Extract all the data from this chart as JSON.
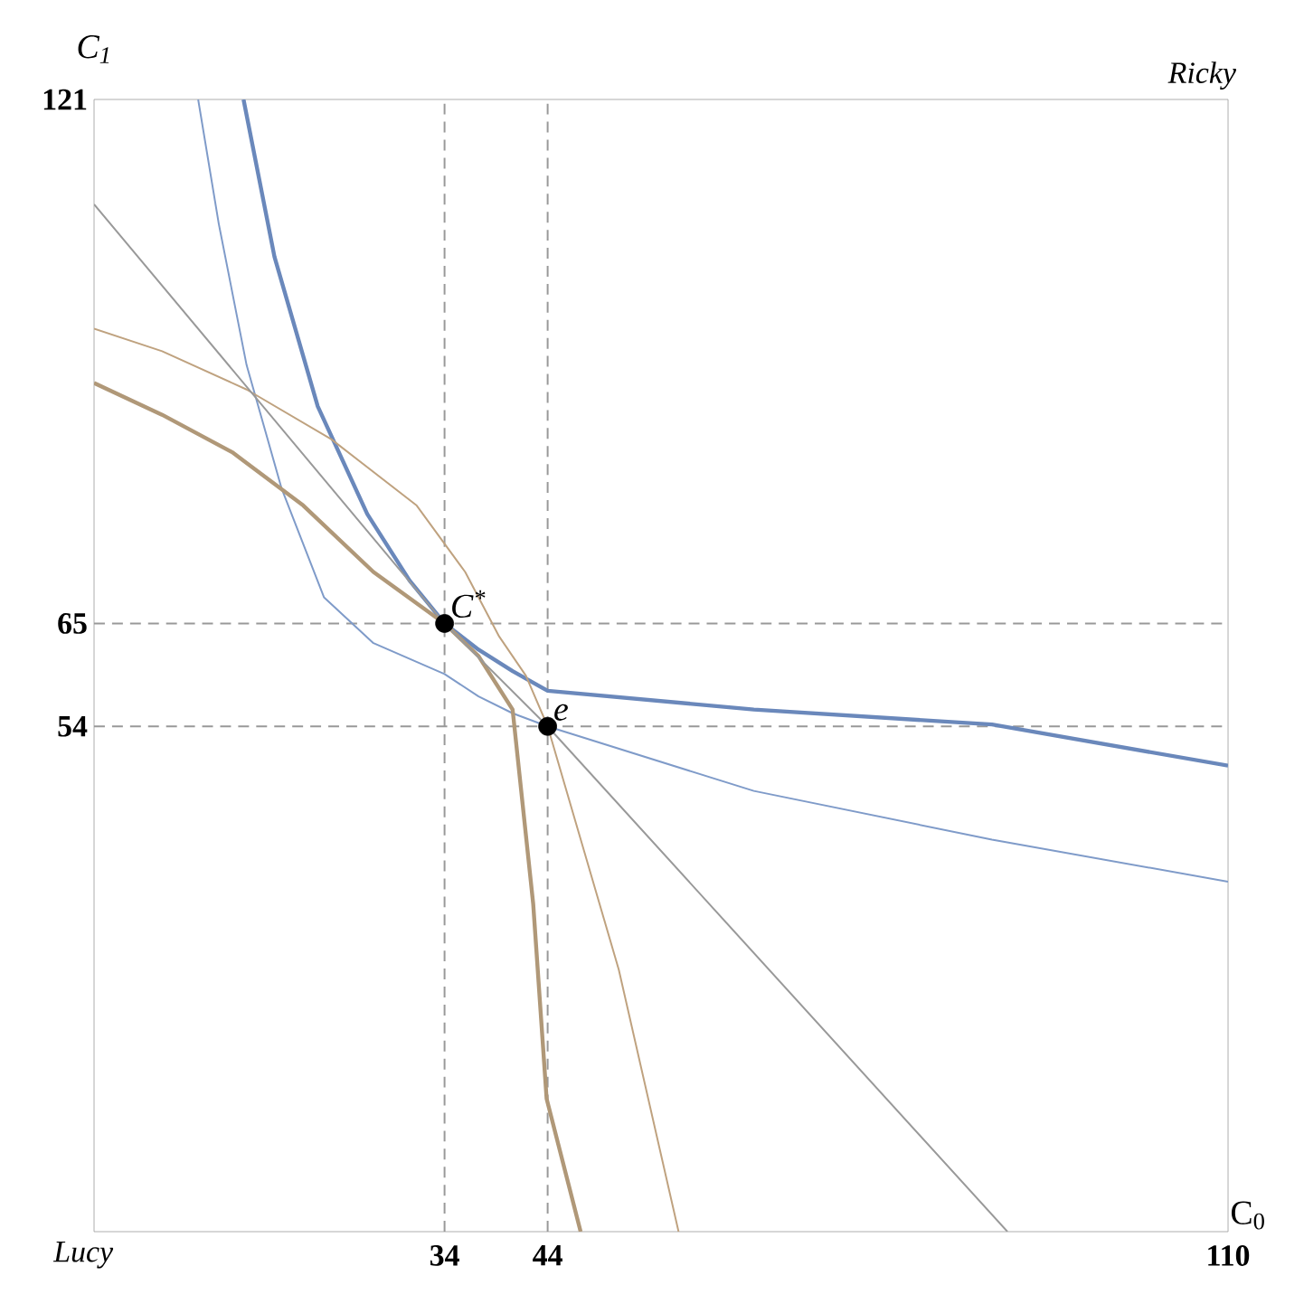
{
  "chart_data": {
    "type": "line",
    "xlabel": "C$_{0}$",
    "ylabel": "C$_{1}$",
    "xlim": [
      0,
      110
    ],
    "ylim": [
      0,
      121
    ],
    "xticks": [
      34,
      44,
      110
    ],
    "yticks": [
      54,
      65,
      121
    ],
    "grid": false,
    "marker": "none",
    "line_style": "solid",
    "series": [
      {
        "color": "#6a88bb",
        "x": [
          14.5,
          17.5,
          21.7,
          26.5,
          30.6,
          34,
          37.3,
          40.6,
          44,
          64.0,
          87.1,
          110
        ],
        "values": [
          121,
          104.2,
          88.2,
          76.7,
          69.6,
          65,
          62.2,
          59.9,
          57.8,
          55.8,
          54.2,
          49.8
        ]
      },
      {
        "color": "#7f9bc9",
        "x": [
          10.1,
          12.1,
          14.8,
          18.2,
          22.3,
          27.1,
          34,
          37.3,
          40.6,
          44,
          64.0,
          87.1,
          110
        ],
        "values": [
          121,
          107.7,
          92.6,
          79.4,
          67.8,
          62.9,
          59.6,
          57.2,
          55.4,
          54,
          47.1,
          41.9,
          37.4
        ]
      },
      {
        "color": "#b09878",
        "x": [
          0,
          6.6,
          13.4,
          20.3,
          27.1,
          34,
          37.3,
          40.6,
          42.6,
          43.9,
          47.2
        ],
        "values": [
          90.7,
          87.3,
          83.3,
          77.6,
          70.5,
          65,
          61.5,
          55.8,
          35.0,
          14.2,
          0
        ]
      },
      {
        "color": "#bfa27f",
        "x": [
          0,
          6.6,
          14.8,
          23.0,
          31.3,
          36.0,
          39.3,
          41.9,
          44,
          50.9,
          56.7
        ],
        "values": [
          96.5,
          94.1,
          90.0,
          84.7,
          77.6,
          70.5,
          63.6,
          59.4,
          54,
          28.0,
          0
        ]
      },
      {
        "color": "#999999",
        "x": [
          0,
          34,
          44,
          88.6
        ],
        "values": [
          109.8,
          65,
          54,
          0
        ]
      },
      {
        "type": "scatter",
        "marker": "circle",
        "color": "#000000",
        "x": [
          34,
          44
        ],
        "values": [
          65,
          54
        ]
      }
    ],
    "ref_lines": [
      {
        "axis": "x",
        "value": 34,
        "color": "#999999",
        "line_style": "dashed"
      },
      {
        "axis": "x",
        "value": 44,
        "color": "#999999",
        "line_style": "dashed"
      },
      {
        "axis": "y",
        "value": 65,
        "color": "#999999",
        "line_style": "dashed"
      },
      {
        "axis": "y",
        "value": 54,
        "color": "#999999",
        "line_style": "dashed"
      }
    ],
    "annotations": [
      {
        "text": "C$^{*}$",
        "x": 34,
        "y": 65
      },
      {
        "text": "e",
        "x": 44,
        "y": 54
      },
      "Ricky",
      "Lucy"
    ]
  }
}
